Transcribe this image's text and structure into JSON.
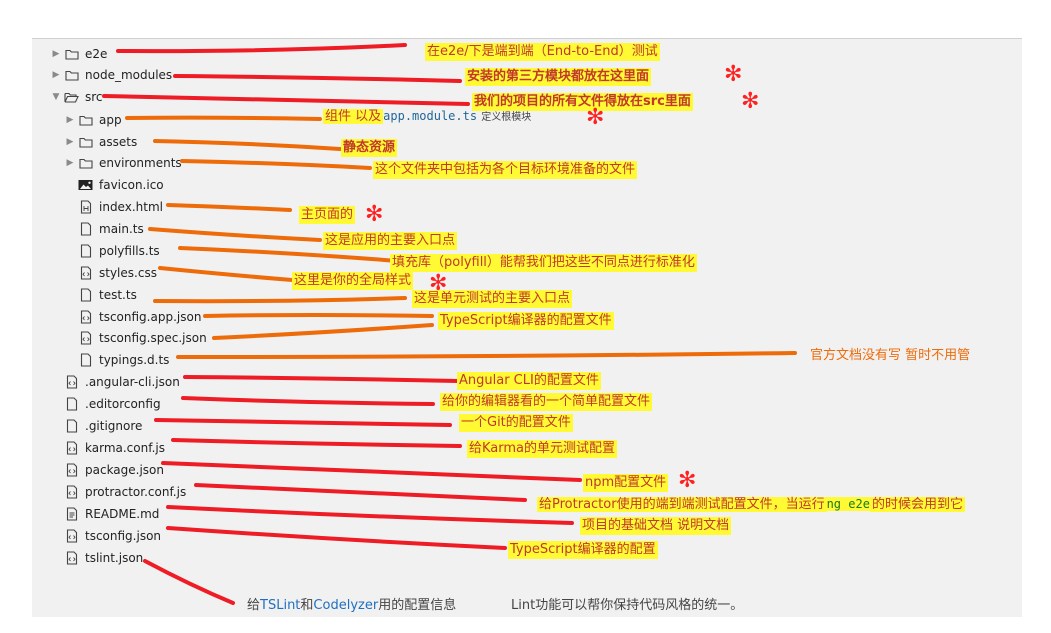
{
  "colors": {
    "panel": "#f1f1f1",
    "red_stroke": "#ee1c25",
    "orange_stroke": "#ee6b0a",
    "highlight": "#fffa33",
    "star": "#ff2020"
  },
  "tree": [
    {
      "name": "e2e",
      "type": "folder",
      "icon": "folder-icon",
      "expanded": false
    },
    {
      "name": "node_modules",
      "type": "folder",
      "icon": "folder-icon",
      "expanded": false
    },
    {
      "name": "src",
      "type": "folder",
      "icon": "folder-open-icon",
      "expanded": true
    },
    {
      "name": "app",
      "type": "folder",
      "icon": "folder-icon",
      "expanded": false
    },
    {
      "name": "assets",
      "type": "folder",
      "icon": "folder-icon",
      "expanded": false
    },
    {
      "name": "environments",
      "type": "folder",
      "icon": "folder-icon",
      "expanded": false
    },
    {
      "name": "favicon.ico",
      "type": "file",
      "icon": "image-file-icon"
    },
    {
      "name": "index.html",
      "type": "file",
      "icon": "html-file-icon"
    },
    {
      "name": "main.ts",
      "type": "file",
      "icon": "file-icon"
    },
    {
      "name": "polyfills.ts",
      "type": "file",
      "icon": "file-icon"
    },
    {
      "name": "styles.css",
      "type": "file",
      "icon": "code-file-icon"
    },
    {
      "name": "test.ts",
      "type": "file",
      "icon": "file-icon"
    },
    {
      "name": "tsconfig.app.json",
      "type": "file",
      "icon": "code-file-icon"
    },
    {
      "name": "tsconfig.spec.json",
      "type": "file",
      "icon": "code-file-icon"
    },
    {
      "name": "typings.d.ts",
      "type": "file",
      "icon": "file-icon"
    },
    {
      "name": ".angular-cli.json",
      "type": "file",
      "icon": "code-file-icon"
    },
    {
      "name": ".editorconfig",
      "type": "file",
      "icon": "file-icon"
    },
    {
      "name": ".gitignore",
      "type": "file",
      "icon": "file-icon"
    },
    {
      "name": "karma.conf.js",
      "type": "file",
      "icon": "code-file-icon"
    },
    {
      "name": "package.json",
      "type": "file",
      "icon": "code-file-icon"
    },
    {
      "name": "protractor.conf.js",
      "type": "file",
      "icon": "code-file-icon"
    },
    {
      "name": "README.md",
      "type": "file",
      "icon": "text-file-icon"
    },
    {
      "name": "tsconfig.json",
      "type": "file",
      "icon": "code-file-icon"
    },
    {
      "name": "tslint.json",
      "type": "file",
      "icon": "code-file-icon"
    }
  ],
  "annotations": {
    "e2e": "在e2e/下是端到端（End-to-End）测试",
    "node_modules": "安装的第三方模块都放在这里面",
    "src": "我们的项目的所有文件得放在src里面",
    "app_prefix": "组件  以及",
    "app_code": "app.module.ts",
    "app_suffix": "定义根模块",
    "assets": "静态资源",
    "environments": "这个文件夹中包括为各个目标环境准备的文件",
    "index_html": "主页面的",
    "main_ts": "这是应用的主要入口点",
    "polyfills": "填充库（polyfill）能帮我们把这些不同点进行标准化",
    "styles": "这里是你的全局样式",
    "test_ts": "这是单元测试的主要入口点",
    "tsconfig_app": "TypeScript编译器的配置文件",
    "typings": "官方文档没有写  暂时不用管",
    "angular_cli": "Angular CLI的配置文件",
    "editorconfig": "给你的编辑器看的一个简单配置文件",
    "gitignore": "一个Git的配置文件",
    "karma": "给Karma的单元测试配置",
    "package_json": "npm配置文件",
    "protractor_prefix": "给Protractor使用的端到端测试配置文件，当运行",
    "protractor_code": "ng e2e",
    "protractor_suffix": "的时候会用到它",
    "readme": "项目的基础文档  说明文档",
    "tsconfig_json": "TypeScript编译器的配置",
    "tslint_give": "给",
    "tslint_word1": "TSLint",
    "tslint_and": "和",
    "tslint_word2": "Codelyzer",
    "tslint_tail": "用的配置信息",
    "lint_note": "Lint功能可以帮你保持代码风格的统一。"
  },
  "star_symbol": "✻"
}
